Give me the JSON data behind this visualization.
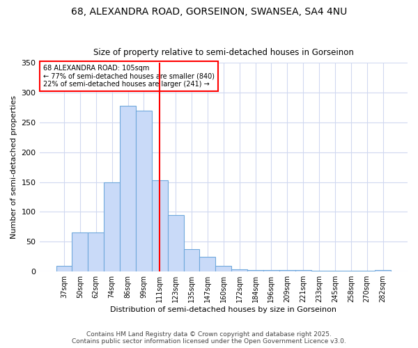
{
  "title1": "68, ALEXANDRA ROAD, GORSEINON, SWANSEA, SA4 4NU",
  "title2": "Size of property relative to semi-detached houses in Gorseinon",
  "xlabel": "Distribution of semi-detached houses by size in Gorseinon",
  "ylabel": "Number of semi-detached properties",
  "categories": [
    "37sqm",
    "50sqm",
    "62sqm",
    "74sqm",
    "86sqm",
    "99sqm",
    "111sqm",
    "123sqm",
    "135sqm",
    "147sqm",
    "160sqm",
    "172sqm",
    "184sqm",
    "196sqm",
    "209sqm",
    "221sqm",
    "233sqm",
    "245sqm",
    "258sqm",
    "270sqm",
    "282sqm"
  ],
  "values": [
    10,
    65,
    65,
    150,
    278,
    270,
    153,
    95,
    37,
    25,
    10,
    4,
    3,
    3,
    2,
    2,
    1,
    1,
    1,
    1,
    2
  ],
  "bar_color": "#c9daf8",
  "bar_edgecolor": "#6fa8dc",
  "highlight_x": "111sqm",
  "highlight_color": "red",
  "annotation_title": "68 ALEXANDRA ROAD: 105sqm",
  "annotation_line1": "← 77% of semi-detached houses are smaller (840)",
  "annotation_line2": "22% of semi-detached houses are larger (241) →",
  "annotation_box_color": "white",
  "annotation_box_edgecolor": "red",
  "footer1": "Contains HM Land Registry data © Crown copyright and database right 2025.",
  "footer2": "Contains public sector information licensed under the Open Government Licence v3.0.",
  "ylim": [
    0,
    350
  ],
  "yticks": [
    0,
    50,
    100,
    150,
    200,
    250,
    300,
    350
  ],
  "background_color": "#ffffff",
  "grid_color": "#d0d8f0"
}
